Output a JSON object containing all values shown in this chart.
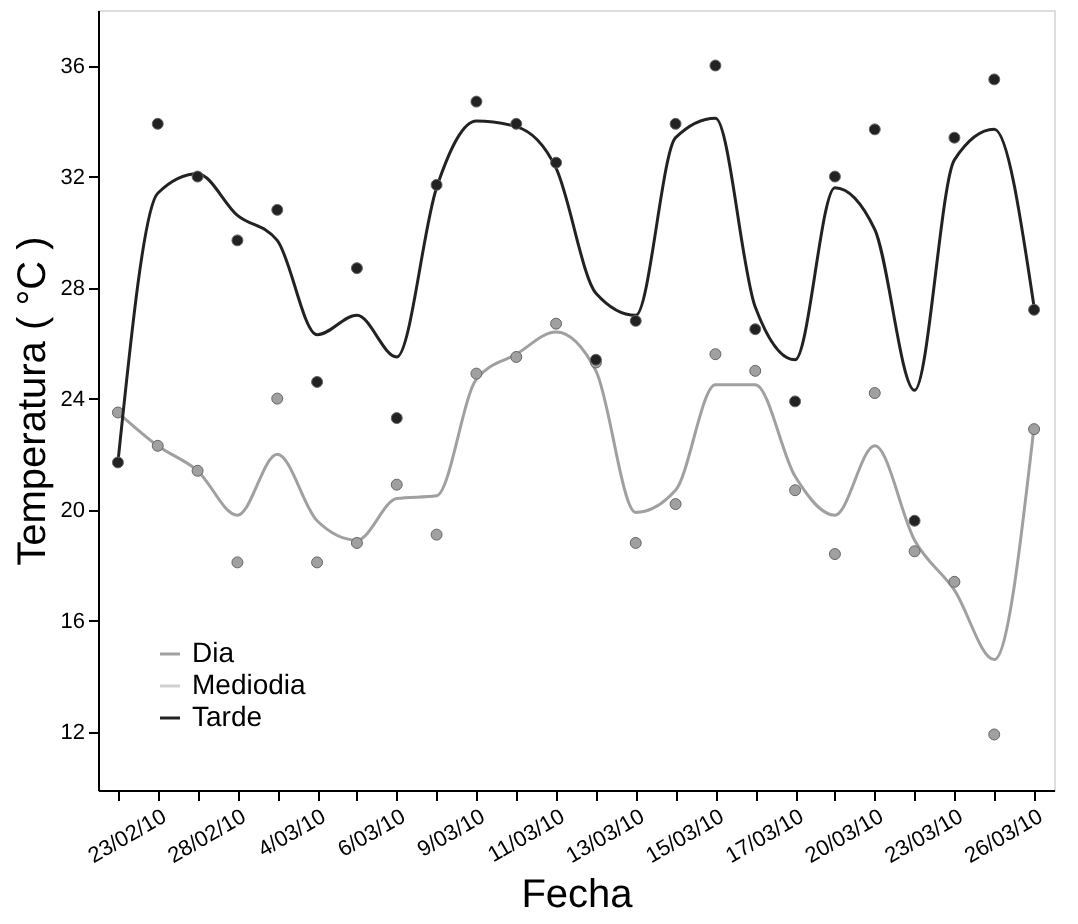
{
  "chart_data": {
    "type": "line",
    "xlabel": "Fecha",
    "ylabel": "Temperatura ( °C )",
    "categories": [
      null,
      "23/02/10",
      null,
      "28/02/10",
      null,
      "4/03/10",
      null,
      "6/03/10",
      null,
      "9/03/10",
      null,
      "11/03/10",
      null,
      "13/03/10",
      null,
      "15/03/10",
      null,
      "17/03/10",
      null,
      "20/03/10",
      null,
      "23/03/10",
      null,
      "26/03/10"
    ],
    "ylim": [
      9.9,
      38
    ],
    "yticks": [
      12,
      16,
      20,
      24,
      28,
      32,
      36
    ],
    "grid": false,
    "legend": "bottom left",
    "series": [
      {
        "name": "Dia",
        "color": "#a0a0a0",
        "values": [
          23.5,
          22.3,
          21.4,
          19.8,
          22.0,
          19.6,
          18.9,
          20.4,
          20.5,
          24.7,
          25.6,
          26.4,
          25.0,
          19.9,
          20.7,
          24.5,
          24.5,
          21.2,
          19.8,
          22.3,
          18.9,
          17.1,
          14.6,
          23.0
        ]
      },
      {
        "type": "scatter",
        "marker": "circle",
        "color": "#a0a0a0",
        "values": [
          23.5,
          22.3,
          21.4,
          18.1,
          24.0,
          18.1,
          18.8,
          20.9,
          19.1,
          24.9,
          25.5,
          26.7,
          25.3,
          18.8,
          20.2,
          25.6,
          25.0,
          20.7,
          18.4,
          24.2,
          18.5,
          17.4,
          11.9,
          22.9
        ]
      },
      {
        "name": "Mediodia",
        "type": "scatter",
        "marker": "circle",
        "color": "#d0d0d0",
        "values": [
          null,
          null,
          null,
          null,
          null,
          null,
          null,
          null,
          null,
          null,
          null,
          null,
          null,
          null,
          null,
          null,
          null,
          null,
          null,
          null,
          null,
          null,
          null,
          null
        ]
      },
      {
        "name": "Tarde",
        "color": "#222222",
        "values": [
          21.7,
          31.4,
          32.1,
          30.6,
          29.7,
          26.3,
          27.0,
          25.5,
          31.6,
          34.0,
          33.8,
          32.3,
          27.8,
          27.0,
          33.4,
          34.1,
          27.3,
          25.4,
          31.6,
          30.1,
          24.3,
          32.6,
          33.7,
          27.3
        ]
      },
      {
        "type": "scatter",
        "marker": "circle",
        "color": "#222222",
        "values": [
          21.7,
          33.9,
          32.0,
          29.7,
          30.8,
          24.6,
          28.7,
          23.3,
          31.7,
          34.7,
          33.9,
          32.5,
          25.4,
          26.8,
          33.9,
          36.0,
          26.5,
          23.9,
          32.0,
          33.7,
          19.6,
          33.4,
          35.5,
          27.2
        ]
      }
    ]
  }
}
